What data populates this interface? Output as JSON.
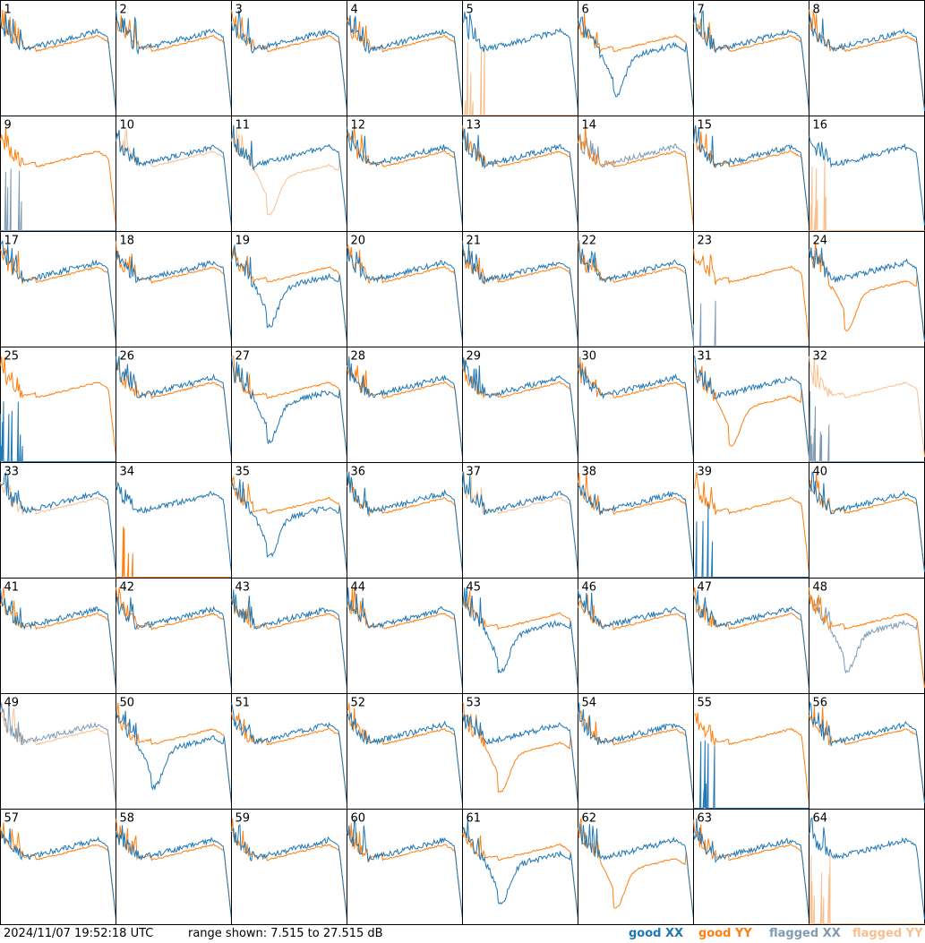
{
  "footer": {
    "timestamp": "2024/11/07 19:52:18 UTC",
    "range": "range shown: 7.515 to 27.515 dB"
  },
  "legend": [
    {
      "label": "good XX",
      "color": "#1f77b4"
    },
    {
      "label": "good YY",
      "color": "#ff7f0e"
    },
    {
      "label": "flagged XX",
      "color": "#7f9bb4"
    },
    {
      "label": "flagged YY",
      "color": "#f8c090"
    }
  ],
  "chart_data": {
    "type": "line",
    "ylim": [
      7.515,
      27.515
    ],
    "grid": {
      "rows": 8,
      "cols": 8
    },
    "panels": [
      {
        "label": "1",
        "xx": "good",
        "yy": "good",
        "xx_shape": "normal",
        "yy_shape": "normal"
      },
      {
        "label": "2",
        "xx": "good",
        "yy": "good",
        "xx_shape": "normal",
        "yy_shape": "normal"
      },
      {
        "label": "3",
        "xx": "good",
        "yy": "good",
        "xx_shape": "normal",
        "yy_shape": "normal"
      },
      {
        "label": "4",
        "xx": "good",
        "yy": "good",
        "xx_shape": "normal",
        "yy_shape": "normal"
      },
      {
        "label": "5",
        "xx": "good",
        "yy": "flagged",
        "xx_shape": "normal",
        "yy_shape": "dead"
      },
      {
        "label": "6",
        "xx": "good",
        "yy": "good",
        "xx_shape": "dip",
        "yy_shape": "normal"
      },
      {
        "label": "7",
        "xx": "good",
        "yy": "good",
        "xx_shape": "normal",
        "yy_shape": "normal"
      },
      {
        "label": "8",
        "xx": "good",
        "yy": "good",
        "xx_shape": "normal",
        "yy_shape": "normal"
      },
      {
        "label": "9",
        "xx": "flagged",
        "yy": "good",
        "xx_shape": "dead",
        "yy_shape": "normal"
      },
      {
        "label": "10",
        "xx": "good",
        "yy": "flagged",
        "xx_shape": "normal",
        "yy_shape": "normal"
      },
      {
        "label": "11",
        "xx": "good",
        "yy": "flagged",
        "xx_shape": "normal",
        "yy_shape": "dip"
      },
      {
        "label": "12",
        "xx": "good",
        "yy": "good",
        "xx_shape": "normal",
        "yy_shape": "normal"
      },
      {
        "label": "13",
        "xx": "good",
        "yy": "good",
        "xx_shape": "normal",
        "yy_shape": "normal"
      },
      {
        "label": "14",
        "xx": "flagged",
        "yy": "good",
        "xx_shape": "normal",
        "yy_shape": "normal"
      },
      {
        "label": "15",
        "xx": "good",
        "yy": "good",
        "xx_shape": "normal",
        "yy_shape": "normal"
      },
      {
        "label": "16",
        "xx": "good",
        "yy": "flagged",
        "xx_shape": "normal",
        "yy_shape": "dead"
      },
      {
        "label": "17",
        "xx": "good",
        "yy": "good",
        "xx_shape": "normal",
        "yy_shape": "normal"
      },
      {
        "label": "18",
        "xx": "good",
        "yy": "good",
        "xx_shape": "normal",
        "yy_shape": "normal"
      },
      {
        "label": "19",
        "xx": "good",
        "yy": "good",
        "xx_shape": "dip",
        "yy_shape": "normal"
      },
      {
        "label": "20",
        "xx": "good",
        "yy": "good",
        "xx_shape": "normal",
        "yy_shape": "normal"
      },
      {
        "label": "21",
        "xx": "good",
        "yy": "good",
        "xx_shape": "normal",
        "yy_shape": "normal"
      },
      {
        "label": "22",
        "xx": "good",
        "yy": "good",
        "xx_shape": "normal",
        "yy_shape": "normal"
      },
      {
        "label": "23",
        "xx": "flagged",
        "yy": "good",
        "xx_shape": "dead",
        "yy_shape": "normal"
      },
      {
        "label": "24",
        "xx": "good",
        "yy": "good",
        "xx_shape": "normal",
        "yy_shape": "dip"
      },
      {
        "label": "25",
        "xx": "good",
        "yy": "good",
        "xx_shape": "dead",
        "yy_shape": "normal"
      },
      {
        "label": "26",
        "xx": "good",
        "yy": "good",
        "xx_shape": "normal",
        "yy_shape": "normal"
      },
      {
        "label": "27",
        "xx": "good",
        "yy": "good",
        "xx_shape": "dip",
        "yy_shape": "normal"
      },
      {
        "label": "28",
        "xx": "good",
        "yy": "good",
        "xx_shape": "normal",
        "yy_shape": "normal"
      },
      {
        "label": "29",
        "xx": "good",
        "yy": "good",
        "xx_shape": "normal",
        "yy_shape": "normal"
      },
      {
        "label": "30",
        "xx": "good",
        "yy": "good",
        "xx_shape": "normal",
        "yy_shape": "normal"
      },
      {
        "label": "31",
        "xx": "good",
        "yy": "good",
        "xx_shape": "normal",
        "yy_shape": "dip"
      },
      {
        "label": "32",
        "xx": "flagged",
        "yy": "flagged",
        "xx_shape": "dead",
        "yy_shape": "normal"
      },
      {
        "label": "33",
        "xx": "good",
        "yy": "flagged",
        "xx_shape": "normal",
        "yy_shape": "normal"
      },
      {
        "label": "34",
        "xx": "good",
        "yy": "good",
        "xx_shape": "normal",
        "yy_shape": "dead"
      },
      {
        "label": "35",
        "xx": "good",
        "yy": "good",
        "xx_shape": "dip",
        "yy_shape": "normal"
      },
      {
        "label": "36",
        "xx": "good",
        "yy": "good",
        "xx_shape": "normal",
        "yy_shape": "normal"
      },
      {
        "label": "37",
        "xx": "good",
        "yy": "flagged",
        "xx_shape": "normal",
        "yy_shape": "normal"
      },
      {
        "label": "38",
        "xx": "good",
        "yy": "good",
        "xx_shape": "normal",
        "yy_shape": "normal"
      },
      {
        "label": "39",
        "xx": "good",
        "yy": "good",
        "xx_shape": "dead",
        "yy_shape": "normal"
      },
      {
        "label": "40",
        "xx": "good",
        "yy": "good",
        "xx_shape": "normal",
        "yy_shape": "normal"
      },
      {
        "label": "41",
        "xx": "good",
        "yy": "good",
        "xx_shape": "normal",
        "yy_shape": "normal"
      },
      {
        "label": "42",
        "xx": "good",
        "yy": "good",
        "xx_shape": "normal",
        "yy_shape": "normal"
      },
      {
        "label": "43",
        "xx": "good",
        "yy": "good",
        "xx_shape": "normal",
        "yy_shape": "normal"
      },
      {
        "label": "44",
        "xx": "good",
        "yy": "good",
        "xx_shape": "normal",
        "yy_shape": "normal"
      },
      {
        "label": "45",
        "xx": "good",
        "yy": "good",
        "xx_shape": "dip",
        "yy_shape": "normal"
      },
      {
        "label": "46",
        "xx": "good",
        "yy": "good",
        "xx_shape": "normal",
        "yy_shape": "normal"
      },
      {
        "label": "47",
        "xx": "good",
        "yy": "good",
        "xx_shape": "normal",
        "yy_shape": "normal"
      },
      {
        "label": "48",
        "xx": "flagged",
        "yy": "good",
        "xx_shape": "dip",
        "yy_shape": "normal"
      },
      {
        "label": "49",
        "xx": "flagged",
        "yy": "flagged",
        "xx_shape": "normal",
        "yy_shape": "normal"
      },
      {
        "label": "50",
        "xx": "good",
        "yy": "good",
        "xx_shape": "dip",
        "yy_shape": "normal"
      },
      {
        "label": "51",
        "xx": "good",
        "yy": "good",
        "xx_shape": "normal",
        "yy_shape": "normal"
      },
      {
        "label": "52",
        "xx": "good",
        "yy": "good",
        "xx_shape": "normal",
        "yy_shape": "normal"
      },
      {
        "label": "53",
        "xx": "good",
        "yy": "good",
        "xx_shape": "normal",
        "yy_shape": "dip"
      },
      {
        "label": "54",
        "xx": "good",
        "yy": "good",
        "xx_shape": "normal",
        "yy_shape": "normal"
      },
      {
        "label": "55",
        "xx": "good",
        "yy": "good",
        "xx_shape": "dead",
        "yy_shape": "normal"
      },
      {
        "label": "56",
        "xx": "good",
        "yy": "good",
        "xx_shape": "normal",
        "yy_shape": "normal"
      },
      {
        "label": "57",
        "xx": "good",
        "yy": "good",
        "xx_shape": "normal",
        "yy_shape": "normal"
      },
      {
        "label": "58",
        "xx": "good",
        "yy": "good",
        "xx_shape": "normal",
        "yy_shape": "normal"
      },
      {
        "label": "59",
        "xx": "good",
        "yy": "good",
        "xx_shape": "normal",
        "yy_shape": "normal"
      },
      {
        "label": "60",
        "xx": "good",
        "yy": "good",
        "xx_shape": "normal",
        "yy_shape": "normal"
      },
      {
        "label": "61",
        "xx": "good",
        "yy": "good",
        "xx_shape": "dip",
        "yy_shape": "normal"
      },
      {
        "label": "62",
        "xx": "good",
        "yy": "good",
        "xx_shape": "normal",
        "yy_shape": "dip"
      },
      {
        "label": "63",
        "xx": "good",
        "yy": "good",
        "xx_shape": "normal",
        "yy_shape": "normal"
      },
      {
        "label": "64",
        "xx": "good",
        "yy": "flagged",
        "xx_shape": "normal",
        "yy_shape": "dead"
      }
    ]
  }
}
